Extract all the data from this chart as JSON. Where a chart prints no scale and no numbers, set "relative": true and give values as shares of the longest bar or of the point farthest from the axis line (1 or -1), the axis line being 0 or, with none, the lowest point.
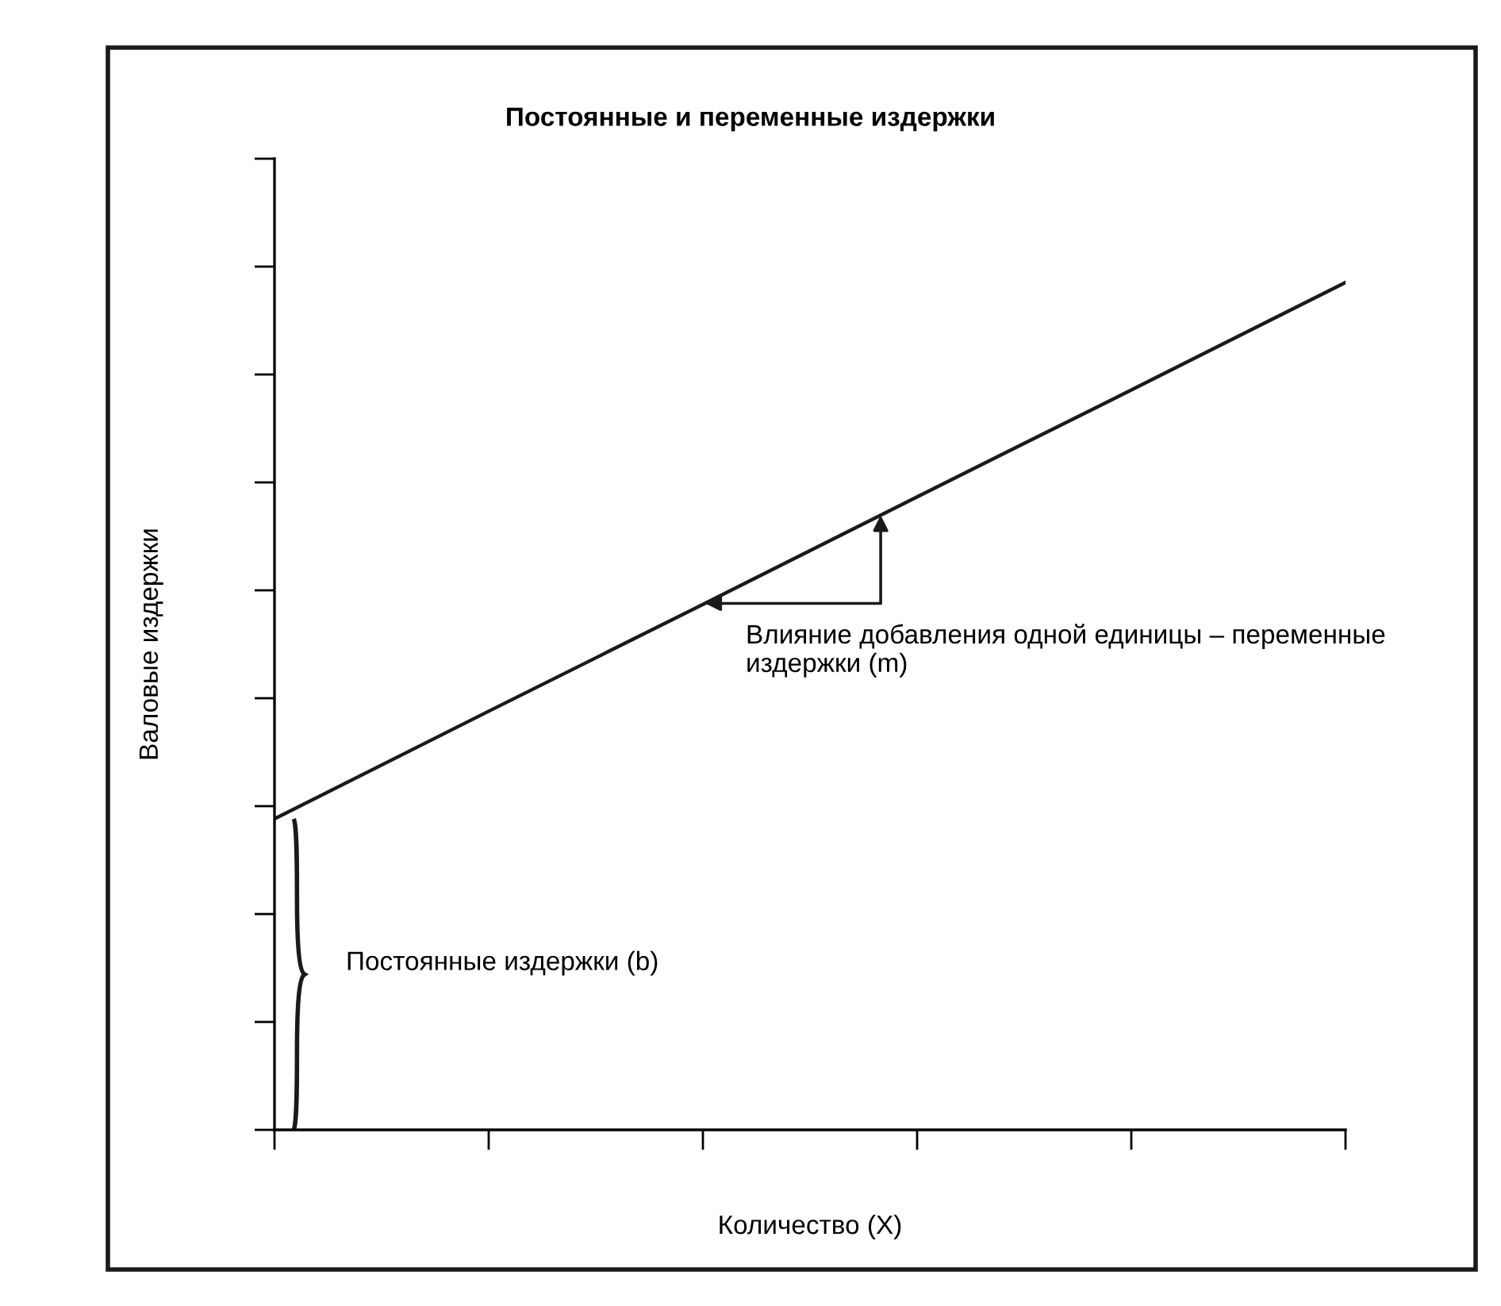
{
  "chart_data": {
    "type": "line",
    "title": "Постоянные и переменные издержки",
    "xlabel": "Количество (X)",
    "ylabel": "Валовые издержки",
    "relative": true,
    "categories": [
      null,
      null,
      null,
      null,
      null,
      null
    ],
    "series": [
      {
        "color": "#1a1a1a",
        "values": [
          0.367,
          0.494,
          0.62,
          0.747,
          0.873,
          1.0
        ]
      }
    ],
    "annotations": [
      "Влияние добавления одной единицы – переменные издержки (m)",
      "Постоянные издержки (b)"
    ],
    "marker": "none",
    "line_style": "solid",
    "grid": false,
    "legend": false
  }
}
